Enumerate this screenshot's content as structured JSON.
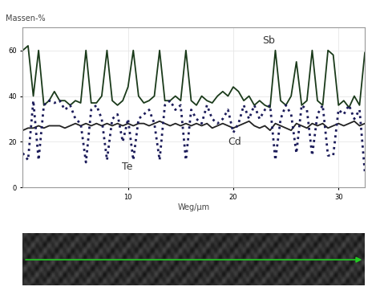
{
  "chart_data": {
    "type": "line",
    "x_label": "Weg/µm",
    "y_label": "Massen-%",
    "x": [
      0,
      0.5,
      1,
      1.5,
      2,
      2.5,
      3,
      3.5,
      4,
      4.5,
      5,
      5.5,
      6,
      6.5,
      7,
      7.5,
      8,
      8.5,
      9,
      9.5,
      10,
      10.5,
      11,
      11.5,
      12,
      12.5,
      13,
      13.5,
      14,
      14.5,
      15,
      15.5,
      16,
      16.5,
      17,
      17.5,
      18,
      18.5,
      19,
      19.5,
      20,
      20.5,
      21,
      21.5,
      22,
      22.5,
      23,
      23.5,
      24,
      24.5,
      25,
      25.5,
      26,
      26.5,
      27,
      27.5,
      28,
      28.5,
      29,
      29.5,
      30,
      30.5,
      31,
      31.5,
      32,
      32.5
    ],
    "series": [
      {
        "name": "Sb",
        "color": "#1a3a1a",
        "line_style": "solid",
        "values": [
          60,
          62,
          40,
          60,
          36,
          38,
          42,
          38,
          38,
          36,
          38,
          37,
          60,
          37,
          37,
          40,
          60,
          38,
          36,
          38,
          44,
          60,
          40,
          37,
          38,
          40,
          60,
          38,
          38,
          40,
          38,
          60,
          38,
          36,
          40,
          38,
          37,
          40,
          42,
          40,
          44,
          42,
          38,
          40,
          36,
          38,
          36,
          35,
          60,
          38,
          36,
          40,
          55,
          36,
          38,
          60,
          38,
          36,
          60,
          58,
          36,
          38,
          35,
          40,
          36,
          59
        ]
      },
      {
        "name": "Cd",
        "color": "#222222",
        "line_style": "solid",
        "values": [
          25,
          26,
          26,
          27,
          26,
          27,
          27,
          27,
          26,
          27,
          28,
          27,
          28,
          27,
          28,
          27,
          28,
          27,
          28,
          27,
          28,
          27,
          28,
          28,
          27,
          28,
          29,
          28,
          27,
          28,
          27,
          28,
          27,
          28,
          27,
          28,
          26,
          27,
          28,
          27,
          26,
          27,
          28,
          29,
          27,
          26,
          27,
          25,
          28,
          27,
          26,
          25,
          28,
          27,
          26,
          28,
          27,
          28,
          26,
          27,
          28,
          27,
          28,
          29,
          27,
          28
        ]
      },
      {
        "name": "Te",
        "color": "#1c1c5a",
        "line_style": "dotted",
        "values": [
          15,
          12,
          38,
          12,
          36,
          38,
          37,
          38,
          34,
          36,
          30,
          28,
          11,
          34,
          36,
          30,
          12,
          30,
          32,
          20,
          30,
          12,
          30,
          32,
          34,
          28,
          12,
          36,
          38,
          34,
          36,
          12,
          34,
          30,
          28,
          36,
          30,
          28,
          30,
          34,
          24,
          28,
          36,
          30,
          36,
          30,
          34,
          36,
          12,
          30,
          36,
          32,
          15,
          36,
          34,
          14,
          32,
          36,
          14,
          14,
          34,
          32,
          36,
          30,
          34,
          7
        ]
      }
    ],
    "xlim": [
      0,
      32.5
    ],
    "xticks": [
      10,
      20,
      30
    ],
    "ylim": [
      0,
      70
    ],
    "yticks": [
      0,
      20,
      40,
      60
    ],
    "grid": true
  }
}
